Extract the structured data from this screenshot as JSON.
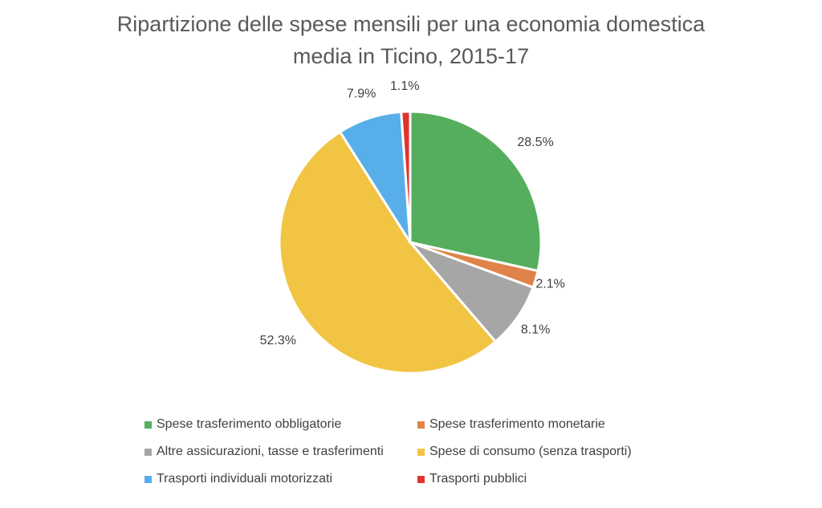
{
  "chart_data": {
    "type": "pie",
    "title": "Ripartizione delle spese mensili per una economia domestica media in Ticino, 2015-17",
    "title_lines": [
      "Ripartizione delle spese mensili per una economia domestica",
      "media in Ticino, 2015-17"
    ],
    "legend_position": "bottom",
    "slices": [
      {
        "label": "Spese trasferimento obbligatorie",
        "value": 28.5,
        "value_label": "28.5%",
        "color": "#55ae5d"
      },
      {
        "label": "Spese trasferimento monetarie",
        "value": 2.1,
        "value_label": "2.1%",
        "color": "#e0834a"
      },
      {
        "label": "Altre assicurazioni, tasse e trasferimenti",
        "value": 8.1,
        "value_label": "8.1%",
        "color": "#a6a6a6"
      },
      {
        "label": "Spese di consumo (senza trasporti)",
        "value": 52.3,
        "value_label": "52.3%",
        "color": "#f2c443"
      },
      {
        "label": "Trasporti individuali motorizzati",
        "value": 7.9,
        "value_label": "7.9%",
        "color": "#58aee8"
      },
      {
        "label": "Trasporti pubblici",
        "value": 1.1,
        "value_label": "1.1%",
        "color": "#e1332d"
      }
    ]
  }
}
